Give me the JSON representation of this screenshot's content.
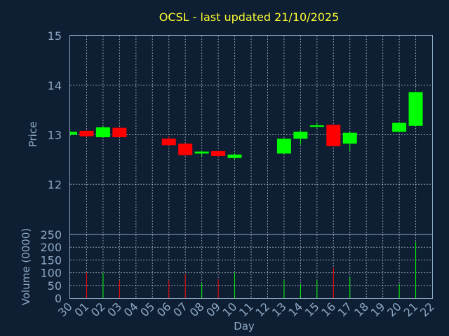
{
  "chart_data": {
    "type": "candlestick",
    "title": "OCSL - last updated 21/10/2025",
    "xlabel": "Day",
    "price_ylabel": "Price",
    "volume_ylabel": "Volume (0000)",
    "price_ylim": [
      11.0,
      15.0
    ],
    "price_yticks": [
      "12",
      "13",
      "14",
      "15"
    ],
    "volume_ylim": [
      0,
      250
    ],
    "volume_yticks": [
      "0",
      "50",
      "100",
      "150",
      "200",
      "250"
    ],
    "grid": true,
    "x_ticks": [
      "30",
      "01",
      "02",
      "03",
      "04",
      "05",
      "06",
      "07",
      "08",
      "09",
      "10",
      "11",
      "12",
      "13",
      "14",
      "15",
      "16",
      "17",
      "18",
      "19",
      "20",
      "21",
      "22"
    ],
    "colors": {
      "up": "#00ff00",
      "down": "#ff0000",
      "background": "#0e1e33",
      "text": "#8da9c4",
      "title": "#ffff33"
    },
    "candles": [
      {
        "day": "30",
        "open": 13.0,
        "high": 13.07,
        "low": 12.98,
        "close": 13.06,
        "volume": 0
      },
      {
        "day": "01",
        "open": 13.08,
        "high": 13.09,
        "low": 12.95,
        "close": 12.97,
        "volume": 100
      },
      {
        "day": "02",
        "open": 12.95,
        "high": 13.18,
        "low": 12.94,
        "close": 13.15,
        "volume": 100
      },
      {
        "day": "03",
        "open": 13.14,
        "high": 13.15,
        "low": 12.95,
        "close": 12.95,
        "volume": 70
      },
      {
        "day": "06",
        "open": 12.92,
        "high": 12.97,
        "low": 12.78,
        "close": 12.79,
        "volume": 70
      },
      {
        "day": "07",
        "open": 12.82,
        "high": 12.83,
        "low": 12.58,
        "close": 12.59,
        "volume": 95
      },
      {
        "day": "08",
        "open": 12.62,
        "high": 12.68,
        "low": 12.56,
        "close": 12.66,
        "volume": 60
      },
      {
        "day": "09",
        "open": 12.67,
        "high": 12.68,
        "low": 12.55,
        "close": 12.57,
        "volume": 75
      },
      {
        "day": "10",
        "open": 12.53,
        "high": 12.63,
        "low": 12.49,
        "close": 12.6,
        "volume": 100
      },
      {
        "day": "13",
        "open": 12.62,
        "high": 12.93,
        "low": 12.61,
        "close": 12.92,
        "volume": 70
      },
      {
        "day": "14",
        "open": 12.92,
        "high": 13.09,
        "low": 12.8,
        "close": 13.06,
        "volume": 55
      },
      {
        "day": "15",
        "open": 13.16,
        "high": 13.25,
        "low": 13.14,
        "close": 13.19,
        "volume": 70
      },
      {
        "day": "16",
        "open": 13.2,
        "high": 13.21,
        "low": 12.76,
        "close": 12.77,
        "volume": 120
      },
      {
        "day": "17",
        "open": 12.82,
        "high": 13.06,
        "low": 12.67,
        "close": 13.04,
        "volume": 85
      },
      {
        "day": "20",
        "open": 13.06,
        "high": 13.26,
        "low": 13.05,
        "close": 13.24,
        "volume": 55
      },
      {
        "day": "21",
        "open": 13.18,
        "high": 13.87,
        "low": 13.17,
        "close": 13.86,
        "volume": 220
      }
    ]
  }
}
